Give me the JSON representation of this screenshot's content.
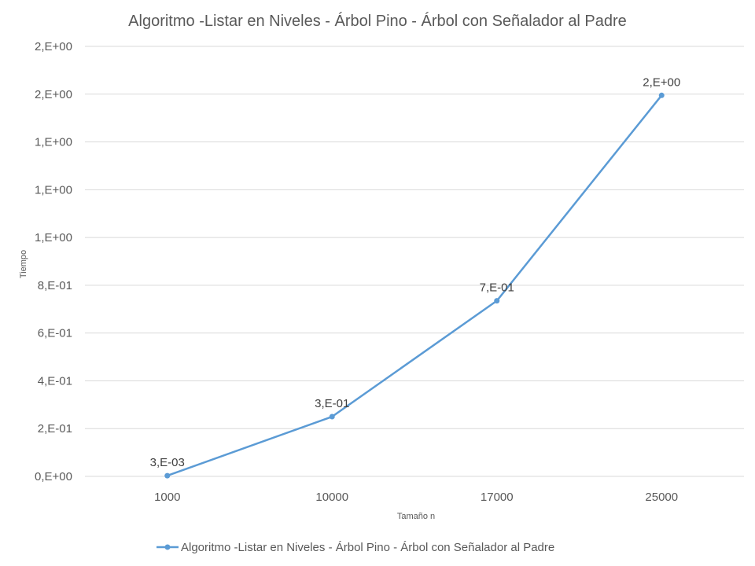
{
  "chart_data": {
    "type": "line",
    "title": "Algoritmo -Listar en Niveles - Árbol Pino - Árbol con Señalador al Padre",
    "xlabel": "Tamaño n",
    "ylabel": "Tiempo",
    "categories": [
      "1000",
      "10000",
      "17000",
      "25000"
    ],
    "series": [
      {
        "name": "Algoritmo -Listar en Niveles - Árbol Pino - Árbol con Señalador al Padre",
        "values": [
          0.003,
          0.25,
          0.735,
          1.595
        ],
        "labels": [
          "3,E-03",
          "3,E-01",
          "7,E-01",
          "2,E+00"
        ],
        "color": "#5b9bd5"
      }
    ],
    "ylim": [
      0,
      1.8
    ],
    "yticks": [
      0,
      0.2,
      0.4,
      0.6,
      0.8,
      1.0,
      1.2,
      1.4,
      1.6,
      1.8
    ],
    "ytick_labels": [
      "0,E+00",
      "2,E-01",
      "4,E-01",
      "6,E-01",
      "8,E-01",
      "1,E+00",
      "1,E+00",
      "1,E+00",
      "2,E+00",
      "2,E+00"
    ],
    "grid": true,
    "legend": "bottom"
  }
}
